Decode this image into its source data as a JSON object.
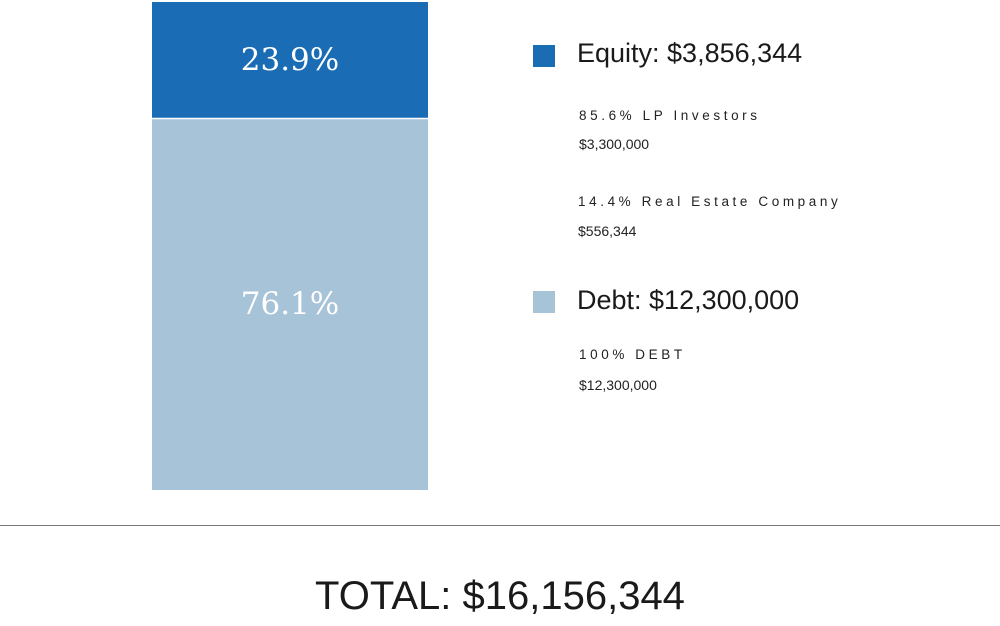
{
  "chart_data": {
    "type": "bar",
    "stacked": true,
    "categories": [
      ""
    ],
    "series": [
      {
        "name": "Equity",
        "values": [
          3856344
        ],
        "color": "#1a6cb5",
        "label": "23.9%"
      },
      {
        "name": "Debt",
        "values": [
          12300000
        ],
        "color": "#a6c3d8",
        "label": "76.1%"
      }
    ],
    "ylim": [
      0,
      16156344
    ],
    "grid": false,
    "legend_position": "right",
    "title": "",
    "xlabel": "",
    "ylabel": ""
  },
  "legend": {
    "equity": {
      "title": "Equity: $3,856,344",
      "color": "#1a6cb5",
      "details": [
        {
          "label": "85.6% LP Investors",
          "value": "$3,300,000"
        },
        {
          "label": "14.4% Real Estate Company",
          "value": "$556,344"
        }
      ]
    },
    "debt": {
      "title": "Debt: $12,300,000",
      "color": "#a6c3d8",
      "details": [
        {
          "label": "100% DEBT",
          "value": "$12,300,000"
        }
      ]
    }
  },
  "total": {
    "label": "TOTAL: $16,156,344"
  }
}
